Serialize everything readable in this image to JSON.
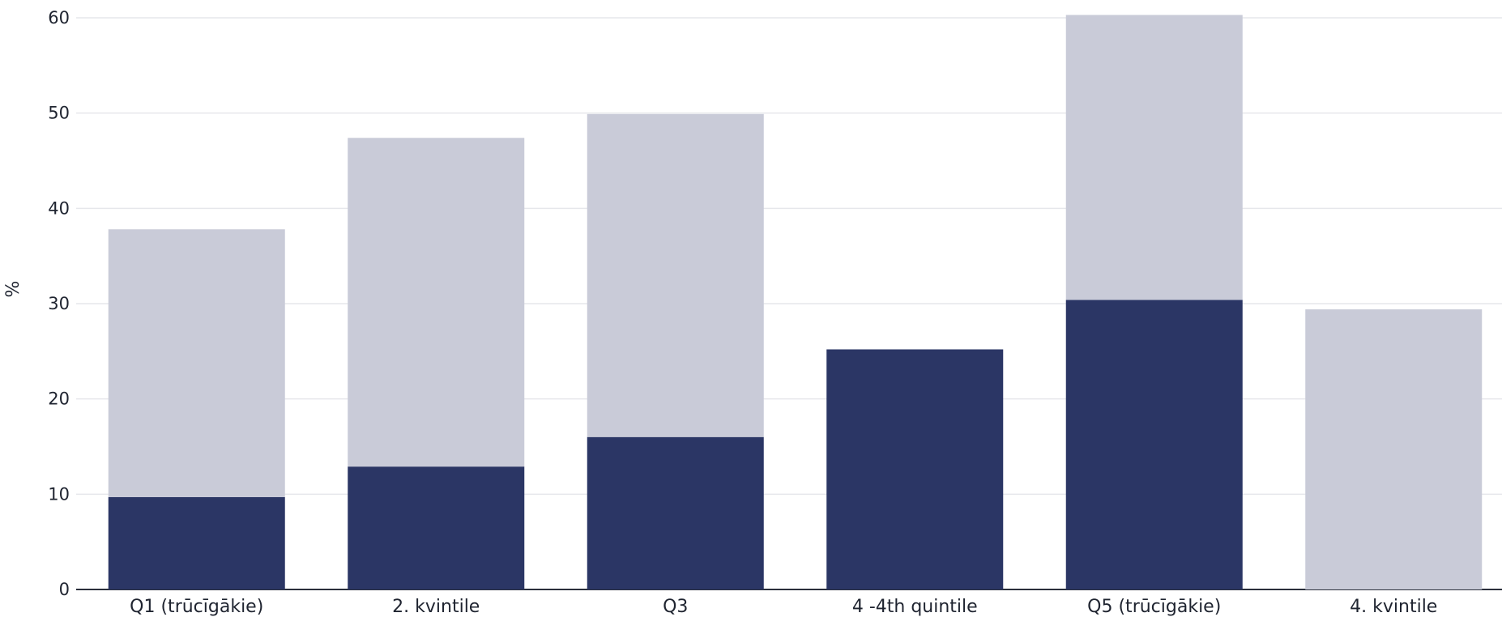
{
  "chart_data": {
    "type": "bar",
    "stacked": true,
    "categories": [
      "Q1 (trūcīgākie)",
      "2. kvintile",
      "Q3",
      "4 -4th quintile",
      "Q5 (trūcīgākie)",
      "4. kvintile"
    ],
    "series": [
      {
        "values": [
          9.7,
          12.9,
          16.0,
          25.2,
          30.4,
          0
        ],
        "color": "#2b3665"
      },
      {
        "values": [
          28.1,
          34.5,
          33.9,
          0,
          29.9,
          29.4
        ],
        "color": "#c9cbd8"
      }
    ],
    "ylabel": "%",
    "xlabel": "",
    "ylim": [
      0,
      60
    ],
    "yticks": [
      0,
      10,
      20,
      30,
      40,
      50,
      60
    ],
    "grid": true,
    "legend": "none"
  }
}
